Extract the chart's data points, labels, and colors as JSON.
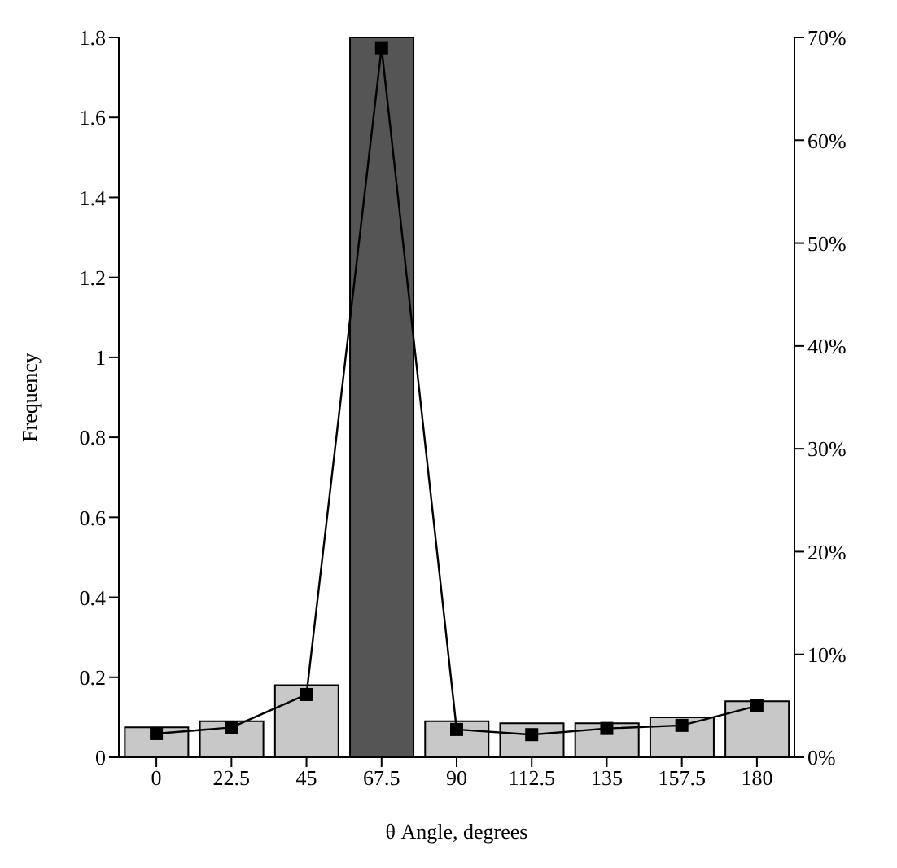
{
  "chart_data": {
    "type": "bar",
    "xlabel": "θ Angle, degrees",
    "ylabel": "Frequency",
    "categories": [
      "0",
      "22.5",
      "45",
      "67.5",
      "90",
      "112.5",
      "135",
      "157.5",
      "180"
    ],
    "series": [
      {
        "color": "#c8c8c8",
        "colors": [
          "#c8c8c8",
          "#c8c8c8",
          "#c8c8c8",
          "#555555",
          "#c8c8c8",
          "#c8c8c8",
          "#c8c8c8",
          "#c8c8c8",
          "#c8c8c8"
        ],
        "values": [
          0.075,
          0.09,
          0.18,
          1.8,
          0.09,
          0.085,
          0.085,
          0.1,
          0.14
        ]
      },
      {
        "type": "line",
        "axis": "y2",
        "color": "#000000",
        "values": [
          2.3,
          2.9,
          6.1,
          69,
          2.7,
          2.2,
          2.8,
          3.1,
          5.0
        ]
      }
    ],
    "ylim": [
      0,
      1.8
    ],
    "yticks": [
      0,
      0.2,
      0.4,
      0.6,
      0.8,
      1,
      1.2,
      1.4,
      1.6,
      1.8
    ],
    "y2lim": [
      0,
      70
    ],
    "y2ticks": [
      {
        "value": 0,
        "label": "0%"
      },
      {
        "value": 10,
        "label": "10%"
      },
      {
        "value": 20,
        "label": "20%"
      },
      {
        "value": 30,
        "label": "30%"
      },
      {
        "value": 40,
        "label": "40%"
      },
      {
        "value": 50,
        "label": "50%"
      },
      {
        "value": 60,
        "label": "60%"
      },
      {
        "value": 70,
        "label": "70%"
      }
    ],
    "marker": "square",
    "grid": false,
    "legend": false
  }
}
